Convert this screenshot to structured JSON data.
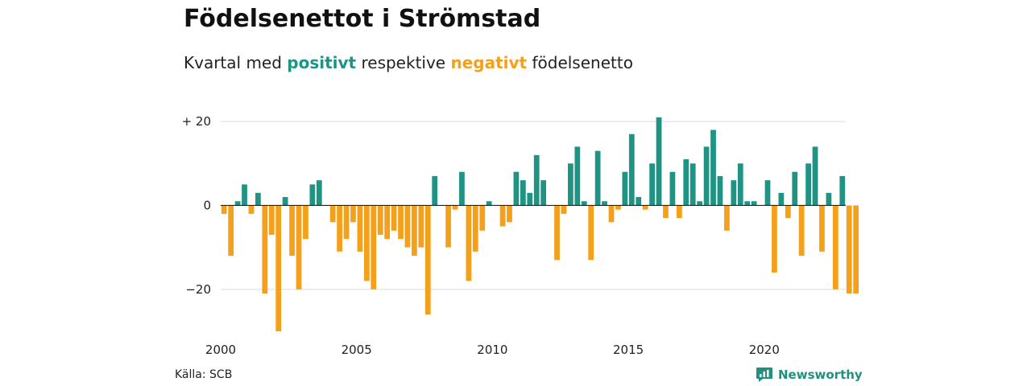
{
  "title": "Födelsenettot i Strömstad",
  "subtitle": {
    "prefix": "Kvartal med ",
    "positive_word": "positivt",
    "middle": " respektive ",
    "negative_word": "negativt",
    "suffix": " födelsenetto"
  },
  "colors": {
    "positive": "#1f9384",
    "negative": "#f5a01a",
    "grid": "#dddddd",
    "zero_line": "#222222"
  },
  "source": "Källa: SCB",
  "brand": {
    "name": "Newsworthy",
    "icon": "newsworthy-logo-icon"
  },
  "chart_data": {
    "type": "bar",
    "title": "",
    "xlabel": "",
    "ylabel": "",
    "x_start": 2000,
    "x_end": 2023,
    "periods_per_year": 4,
    "ylim": [
      -30,
      25
    ],
    "y_ticks": [
      {
        "value": 20,
        "label": "+ 20"
      },
      {
        "value": 0,
        "label": "0"
      },
      {
        "value": -20,
        "label": "−20"
      }
    ],
    "x_ticks": [
      2000,
      2005,
      2010,
      2015,
      2020
    ],
    "grid": true,
    "values": [
      -2,
      -12,
      1,
      5,
      -2,
      3,
      -21,
      -7,
      -30,
      2,
      -12,
      -20,
      -8,
      5,
      6,
      0,
      -4,
      -11,
      -8,
      -4,
      -11,
      -18,
      -20,
      -7,
      -8,
      -6,
      -8,
      -10,
      -12,
      -10,
      -26,
      7,
      0,
      -10,
      -1,
      8,
      -18,
      -11,
      -6,
      1,
      0,
      -5,
      -4,
      8,
      6,
      3,
      12,
      6,
      0,
      -13,
      -2,
      10,
      14,
      1,
      -13,
      13,
      1,
      -4,
      -1,
      8,
      17,
      2,
      -1,
      10,
      21,
      -3,
      8,
      -3,
      11,
      10,
      1,
      14,
      18,
      7,
      -6,
      6,
      10,
      1,
      1,
      0,
      6,
      -16,
      3,
      -3,
      8,
      -12,
      10,
      14,
      -11,
      3,
      -20,
      7,
      -21,
      -21
    ]
  }
}
